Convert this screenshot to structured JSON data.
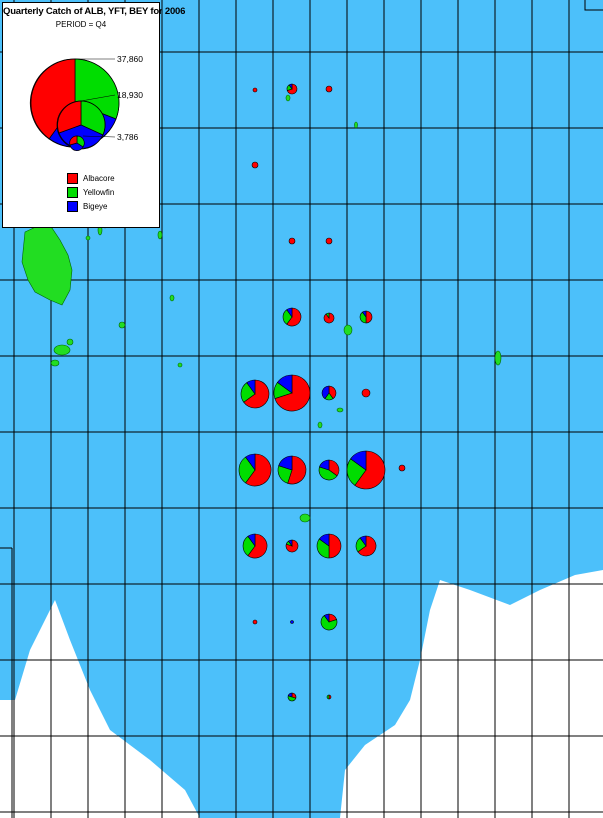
{
  "legend": {
    "title": "Quarterly Catch of ALB, YFT, BEY for 2006",
    "period": "PERIOD = Q4",
    "scale_values": [
      "37,860",
      "18,930",
      "3,786"
    ],
    "species": [
      {
        "label": "Albacore",
        "color": "#ff0000"
      },
      {
        "label": "Yellowfin",
        "color": "#00dd00"
      },
      {
        "label": "Bigeye",
        "color": "#0000ff"
      }
    ]
  },
  "colors": {
    "ocean": "#4cc0fa",
    "land": "#22dd22",
    "outside": "#ffffff",
    "grid": "#000000"
  },
  "map_data": {
    "pie_sizes_relative": [
      {
        "r": 0.42,
        "albacore": 0.55,
        "yellowfin": 0.3,
        "bigeye": 0.15
      },
      {
        "r": 0.42,
        "albacore": 0.6,
        "yellowfin": 0.25,
        "bigeye": 0.15
      }
    ]
  }
}
